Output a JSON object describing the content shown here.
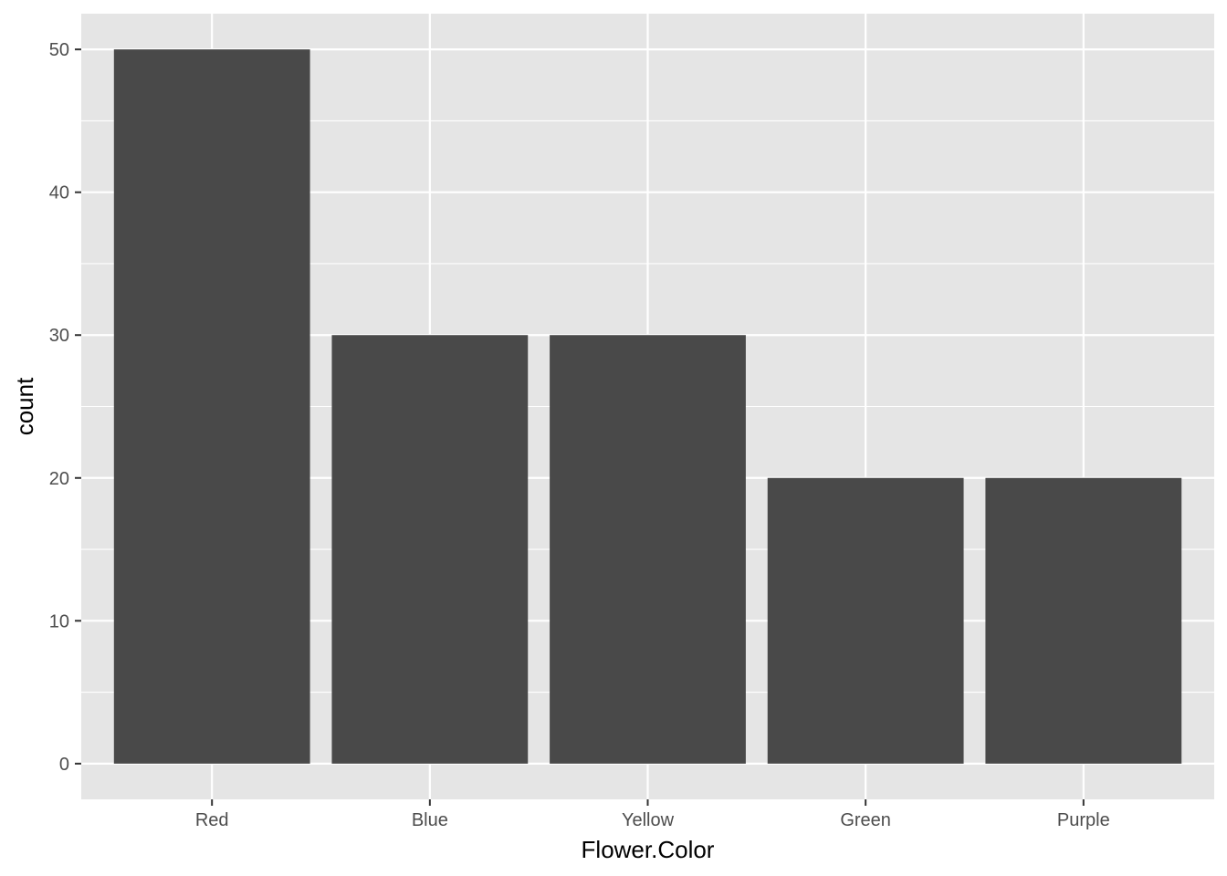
{
  "chart_data": {
    "type": "bar",
    "title": "",
    "xlabel": "Flower.Color",
    "ylabel": "count",
    "categories": [
      "Red",
      "Blue",
      "Yellow",
      "Green",
      "Purple"
    ],
    "values": [
      50,
      30,
      30,
      20,
      20
    ],
    "ylim": [
      -2.5,
      52.5
    ],
    "yticks": [
      0,
      10,
      20,
      30,
      40,
      50
    ],
    "grid": true,
    "legend": "none",
    "colors": {
      "panel_background": "#e5e5e5",
      "grid": "#ffffff",
      "bar_fill": "#494949",
      "tick": "#333333",
      "tick_text": "#4d4d4d",
      "axis_title": "#000000"
    }
  }
}
